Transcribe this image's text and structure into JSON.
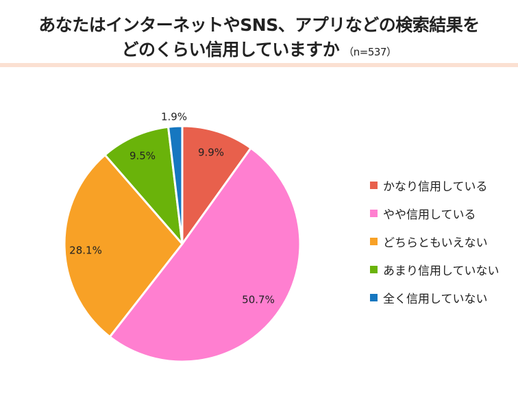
{
  "header": {
    "title_line1": "あなたはインターネットやSNS、アプリなどの検索結果を",
    "title_line2": "どのくらい信用していますか",
    "sample_note": "（n=537）"
  },
  "chart_data": {
    "type": "pie",
    "unit": "%",
    "slices": [
      {
        "label": "かなり信用している",
        "value": 9.9,
        "display": "9.9%",
        "color": "#e8604c"
      },
      {
        "label": "やや信用している",
        "value": 50.7,
        "display": "50.7%",
        "color": "#ff7fd0"
      },
      {
        "label": "どちらともいえない",
        "value": 28.1,
        "display": "28.1%",
        "color": "#f8a126"
      },
      {
        "label": "あまり信用していない",
        "value": 9.5,
        "display": "9.5%",
        "color": "#6ab30a"
      },
      {
        "label": "全く信用していない",
        "value": 1.9,
        "display": "1.9%",
        "color": "#1677c0"
      }
    ],
    "legend_position": "right"
  }
}
